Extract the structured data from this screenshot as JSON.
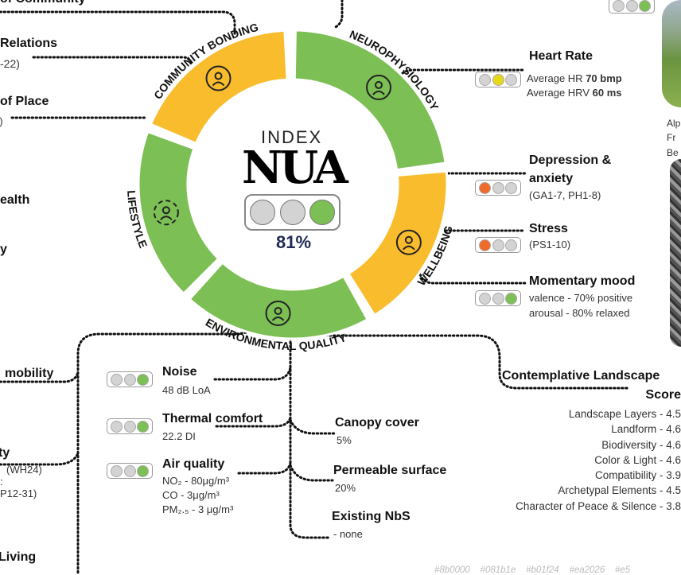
{
  "colors": {
    "yellow": "#f9bc2c",
    "green": "#7cbf55",
    "light_grey": "#d3d3d3",
    "orange": "#f06a2a",
    "amber": "#e6d81a",
    "navy": "#1f2a55"
  },
  "center": {
    "index_label": "INDEX",
    "logo": "NUA",
    "score": "81%",
    "light": [
      "grey",
      "grey",
      "green"
    ]
  },
  "ring": [
    {
      "label": "NEUROPHYSIOLOGY",
      "color": "green",
      "icon": "brain-heart-icon"
    },
    {
      "label": "WELLBEING",
      "color": "yellow",
      "icon": "mood-faces-icon"
    },
    {
      "label": "ENVIRONMENTAL QUALITY",
      "color": "green",
      "icon": "trees-house-icon"
    },
    {
      "label": "LIFESTYLE",
      "color": "green",
      "icon": "lifestyle-cycle-icon"
    },
    {
      "label": "COMMUNITY BONDING",
      "color": "yellow",
      "icon": "community-heart-icon"
    }
  ],
  "left_items": [
    {
      "title": "of Community"
    },
    {
      "title": "Relations",
      "sub": "-22)"
    },
    {
      "title": "of Place",
      "sub": "5)"
    },
    {
      "title": "ealth"
    },
    {
      "title": "y"
    },
    {
      "title": "mobility"
    },
    {
      "title": "ty",
      "sub": "(WH24)"
    },
    {
      "title": ":",
      "sub": "P12-31)"
    },
    {
      "title": "Living"
    }
  ],
  "right_items": [
    {
      "title": "Heart Rate",
      "lines": [
        {
          "text": "Average HR ",
          "bold": "70 bmp"
        },
        {
          "text": "Average HRV ",
          "bold": "60 ms"
        }
      ],
      "light": [
        "grey",
        "amber",
        "grey"
      ]
    },
    {
      "title": "Depression &",
      "title2": "anxiety",
      "sub": "(GA1-7, PH1-8)",
      "light": [
        "orange",
        "grey",
        "grey"
      ]
    },
    {
      "title": "Stress",
      "sub": "(PS1-10)",
      "light": [
        "orange",
        "grey",
        "grey"
      ]
    },
    {
      "title": "Momentary mood",
      "lines": [
        {
          "text": "valence - 70% positive"
        },
        {
          "text": "arousal - 80% relaxed"
        }
      ],
      "light": [
        "grey",
        "grey",
        "green"
      ]
    }
  ],
  "top_right_light": [
    "grey",
    "grey",
    "green"
  ],
  "photo_caption": [
    "Alp",
    "Fr",
    "Be"
  ],
  "env_items": [
    {
      "title": "Noise",
      "lines": [
        "48 dB LoA"
      ],
      "light": [
        "grey",
        "grey",
        "green"
      ]
    },
    {
      "title": "Thermal comfort",
      "lines": [
        "22.2 DI"
      ],
      "light": [
        "grey",
        "grey",
        "green"
      ]
    },
    {
      "title": "Air quality",
      "lines": [
        "NO₂ - 80μg/m³",
        "CO - 3μg/m³",
        "PM₂.₅ - 3 μg/m³"
      ],
      "light": [
        "grey",
        "grey",
        "green"
      ]
    }
  ],
  "nbs_items": [
    {
      "title": "Canopy cover",
      "value": "5%"
    },
    {
      "title": "Permeable surface",
      "value": "20%"
    },
    {
      "title": "Existing NbS",
      "value": "- none"
    }
  ],
  "landscape": {
    "title": "Contemplative Landscape",
    "subtitle": "Score",
    "items": [
      "Landscape Layers - 4.5",
      "Landform - 4.6",
      "Biodiversity - 4.6",
      "Color & Light - 4.6",
      "Compatibility - 3.9",
      "Archetypal Elements - 4.5",
      "Character of Peace & Silence - 3.8"
    ]
  },
  "palette_codes": "#8b0000    #081b1e    #b01f24    #ea2026    #e5"
}
